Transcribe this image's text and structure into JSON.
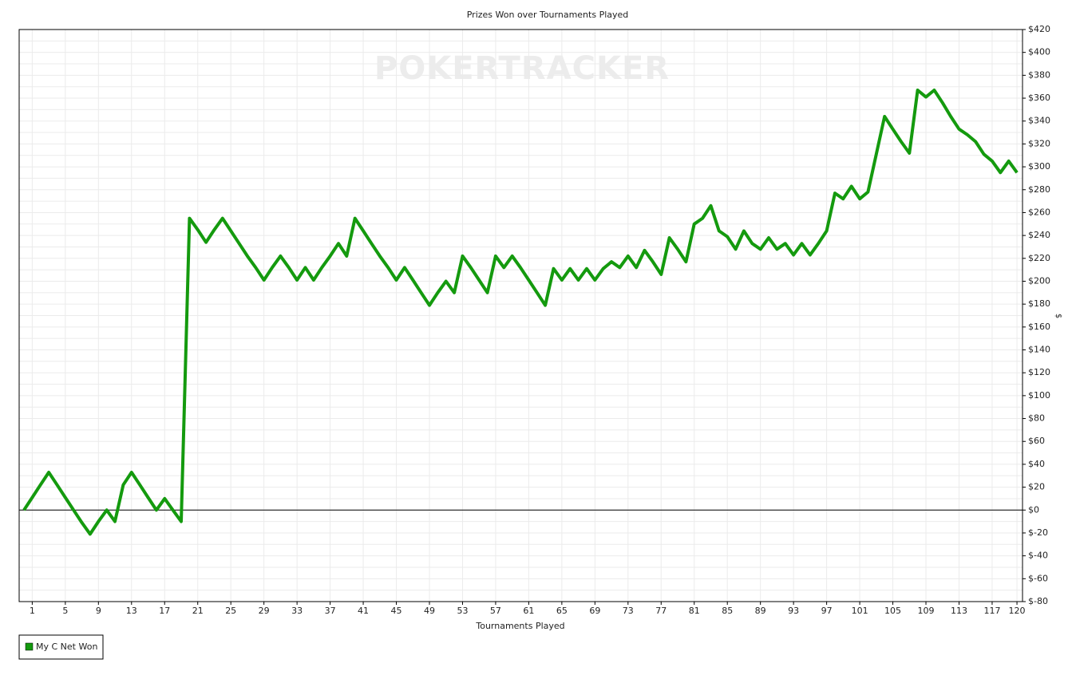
{
  "chart_data": {
    "type": "line",
    "title": "Prizes Won over Tournaments Played",
    "watermark": "POKERTRACKER",
    "x_label": "Tournaments Played",
    "y_label": "$",
    "x": [
      0,
      1,
      2,
      3,
      4,
      5,
      6,
      7,
      8,
      9,
      10,
      11,
      12,
      13,
      14,
      15,
      16,
      17,
      18,
      19,
      20,
      21,
      22,
      23,
      24,
      25,
      26,
      27,
      28,
      29,
      30,
      31,
      32,
      33,
      34,
      35,
      36,
      37,
      38,
      39,
      40,
      41,
      42,
      43,
      44,
      45,
      46,
      47,
      48,
      49,
      50,
      51,
      52,
      53,
      54,
      55,
      56,
      57,
      58,
      59,
      60,
      61,
      62,
      63,
      64,
      65,
      66,
      67,
      68,
      69,
      70,
      71,
      72,
      73,
      74,
      75,
      76,
      77,
      78,
      79,
      80,
      81,
      82,
      83,
      84,
      85,
      86,
      87,
      88,
      89,
      90,
      91,
      92,
      93,
      94,
      95,
      96,
      97,
      98,
      99,
      100,
      101,
      102,
      103,
      104,
      105,
      106,
      107,
      108,
      109,
      110,
      111,
      112,
      113,
      114,
      115,
      116,
      117,
      118,
      119,
      120
    ],
    "series": [
      {
        "name": "My C Net Won",
        "color": "#149a0e",
        "values": [
          0,
          11,
          22,
          33,
          22,
          11,
          0,
          -11,
          -21,
          -10,
          0,
          -10,
          22,
          33,
          22,
          11,
          0,
          10,
          0,
          -10,
          255,
          245,
          234,
          245,
          255,
          244,
          233,
          222,
          212,
          201,
          212,
          222,
          212,
          201,
          212,
          201,
          212,
          222,
          233,
          222,
          255,
          244,
          233,
          222,
          212,
          201,
          212,
          201,
          190,
          179,
          190,
          200,
          190,
          222,
          212,
          201,
          190,
          222,
          212,
          222,
          212,
          201,
          190,
          179,
          211,
          201,
          211,
          201,
          211,
          201,
          211,
          217,
          212,
          222,
          212,
          227,
          217,
          206,
          238,
          228,
          217,
          250,
          255,
          266,
          244,
          239,
          228,
          244,
          233,
          228,
          238,
          228,
          233,
          223,
          233,
          223,
          233,
          244,
          277,
          272,
          283,
          272,
          278,
          311,
          344,
          333,
          322,
          312,
          367,
          361,
          367,
          356,
          344,
          333,
          328,
          322,
          311,
          305,
          295,
          305,
          295
        ]
      }
    ],
    "xlim": [
      -0.58,
      120.67
    ],
    "xticks": [
      1,
      5,
      9,
      13,
      17,
      21,
      25,
      29,
      33,
      37,
      41,
      45,
      49,
      53,
      57,
      61,
      65,
      69,
      73,
      77,
      81,
      85,
      89,
      93,
      97,
      101,
      105,
      109,
      113,
      117,
      120
    ],
    "ylim": [
      -80,
      420
    ],
    "yticks": [
      {
        "value": -80,
        "label": "$-80"
      },
      {
        "value": -60,
        "label": "$-60"
      },
      {
        "value": -40,
        "label": "$-40"
      },
      {
        "value": -20,
        "label": "$-20"
      },
      {
        "value": 0,
        "label": "$0"
      },
      {
        "value": 20,
        "label": "$20"
      },
      {
        "value": 40,
        "label": "$40"
      },
      {
        "value": 60,
        "label": "$60"
      },
      {
        "value": 80,
        "label": "$80"
      },
      {
        "value": 100,
        "label": "$100"
      },
      {
        "value": 120,
        "label": "$120"
      },
      {
        "value": 140,
        "label": "$140"
      },
      {
        "value": 160,
        "label": "$160"
      },
      {
        "value": 180,
        "label": "$180"
      },
      {
        "value": 200,
        "label": "$200"
      },
      {
        "value": 220,
        "label": "$220"
      },
      {
        "value": 240,
        "label": "$240"
      },
      {
        "value": 260,
        "label": "$260"
      },
      {
        "value": 280,
        "label": "$280"
      },
      {
        "value": 300,
        "label": "$300"
      },
      {
        "value": 320,
        "label": "$320"
      },
      {
        "value": 340,
        "label": "$340"
      },
      {
        "value": 360,
        "label": "$360"
      },
      {
        "value": 380,
        "label": "$380"
      },
      {
        "value": 400,
        "label": "$400"
      },
      {
        "value": 420,
        "label": "$420"
      }
    ],
    "grid": true,
    "legend": "bottom-left"
  }
}
